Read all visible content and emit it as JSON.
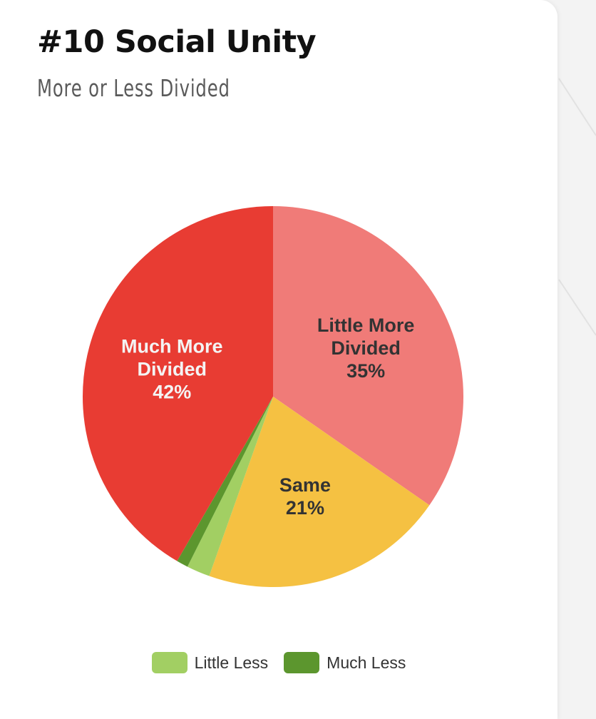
{
  "header": {
    "title": "#10 Social Unity",
    "subtitle": "More or Less Divided"
  },
  "chart_data": {
    "type": "pie",
    "title": "#10 Social Unity",
    "subtitle": "More or Less Divided",
    "legend_placement": "bottom",
    "slices": [
      {
        "name": "Little More Divided",
        "label_lines": [
          "Little More",
          "Divided"
        ],
        "value": 35,
        "value_label": "35%",
        "color": "#f07b78",
        "label_color": "#333333",
        "in_legend": false
      },
      {
        "name": "Same",
        "label_lines": [
          "Same"
        ],
        "value": 21,
        "value_label": "21%",
        "color": "#f5c142",
        "label_color": "#333333",
        "in_legend": false
      },
      {
        "name": "Little Less",
        "label_lines": [],
        "value": 2,
        "value_label": "",
        "color": "#a2cf63",
        "label_color": "#333333",
        "in_legend": true
      },
      {
        "name": "Much Less",
        "label_lines": [],
        "value": 1,
        "value_label": "",
        "color": "#5c962e",
        "label_color": "#333333",
        "in_legend": true
      },
      {
        "name": "Much More Divided",
        "label_lines": [
          "Much More",
          "Divided"
        ],
        "value": 42,
        "value_label": "42%",
        "color": "#e83c33",
        "label_color": "#f4f4f4",
        "in_legend": false
      }
    ]
  }
}
